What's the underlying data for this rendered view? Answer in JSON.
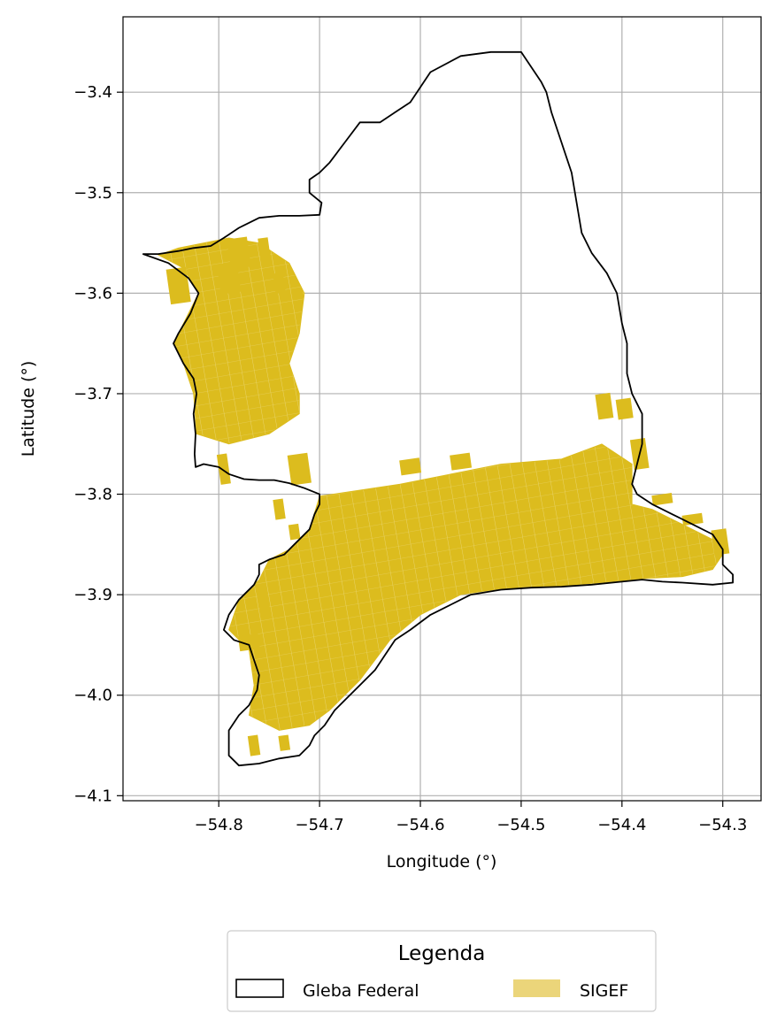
{
  "chart_data": {
    "type": "map",
    "xlabel": "Longitude (°)",
    "ylabel": "Latitude (°)",
    "xlim": [
      -54.895,
      -54.262
    ],
    "ylim": [
      -4.105,
      -3.325
    ],
    "xticks": [
      -54.8,
      -54.7,
      -54.6,
      -54.5,
      -54.4,
      -54.3
    ],
    "xtick_labels": [
      "−54.8",
      "−54.7",
      "−54.6",
      "−54.5",
      "−54.4",
      "−54.3"
    ],
    "yticks": [
      -3.4,
      -3.5,
      -3.6,
      -3.7,
      -3.8,
      -3.9,
      -4.0,
      -4.1
    ],
    "ytick_labels": [
      "−3.4",
      "−3.5",
      "−3.6",
      "−3.7",
      "−3.8",
      "−3.9",
      "−4.0",
      "−4.1"
    ],
    "grid": true,
    "legend": {
      "title": "Legenda",
      "placement": "below-center",
      "entries": [
        {
          "label": "Gleba Federal",
          "style": "outline",
          "color": "#000000"
        },
        {
          "label": "SIGEF",
          "style": "fill",
          "color": "#ebd57a"
        }
      ]
    },
    "colors": {
      "boundary": "#000000",
      "parcels": "#dcbc1e",
      "grid": "#b0b0b0"
    },
    "boundary": [
      [
        -54.5,
        -3.36
      ],
      [
        -54.53,
        -3.36
      ],
      [
        -54.56,
        -3.364
      ],
      [
        -54.59,
        -3.38
      ],
      [
        -54.61,
        -3.41
      ],
      [
        -54.625,
        -3.42
      ],
      [
        -54.64,
        -3.43
      ],
      [
        -54.66,
        -3.43
      ],
      [
        -54.675,
        -3.45
      ],
      [
        -54.69,
        -3.47
      ],
      [
        -54.7,
        -3.48
      ],
      [
        -54.71,
        -3.487
      ],
      [
        -54.71,
        -3.5
      ],
      [
        -54.698,
        -3.51
      ],
      [
        -54.7,
        -3.522
      ],
      [
        -54.72,
        -3.523
      ],
      [
        -54.74,
        -3.523
      ],
      [
        -54.76,
        -3.525
      ],
      [
        -54.78,
        -3.535
      ],
      [
        -54.795,
        -3.545
      ],
      [
        -54.808,
        -3.553
      ],
      [
        -54.825,
        -3.555
      ],
      [
        -54.84,
        -3.558
      ],
      [
        -54.86,
        -3.561
      ],
      [
        -54.875,
        -3.561
      ],
      [
        -54.85,
        -3.57
      ],
      [
        -54.83,
        -3.585
      ],
      [
        -54.82,
        -3.6
      ],
      [
        -54.828,
        -3.62
      ],
      [
        -54.84,
        -3.64
      ],
      [
        -54.845,
        -3.65
      ],
      [
        -54.835,
        -3.67
      ],
      [
        -54.825,
        -3.685
      ],
      [
        -54.822,
        -3.7
      ],
      [
        -54.825,
        -3.72
      ],
      [
        -54.823,
        -3.74
      ],
      [
        -54.824,
        -3.76
      ],
      [
        -54.823,
        -3.773
      ],
      [
        -54.815,
        -3.77
      ],
      [
        -54.8,
        -3.773
      ],
      [
        -54.79,
        -3.78
      ],
      [
        -54.775,
        -3.785
      ],
      [
        -54.76,
        -3.786
      ],
      [
        -54.745,
        -3.786
      ],
      [
        -54.73,
        -3.789
      ],
      [
        -54.715,
        -3.794
      ],
      [
        -54.7,
        -3.8
      ],
      [
        -54.7,
        -3.81
      ],
      [
        -54.705,
        -3.82
      ],
      [
        -54.71,
        -3.835
      ],
      [
        -54.725,
        -3.85
      ],
      [
        -54.735,
        -3.86
      ],
      [
        -54.75,
        -3.865
      ],
      [
        -54.76,
        -3.87
      ],
      [
        -54.76,
        -3.88
      ],
      [
        -54.765,
        -3.89
      ],
      [
        -54.78,
        -3.905
      ],
      [
        -54.79,
        -3.92
      ],
      [
        -54.795,
        -3.935
      ],
      [
        -54.785,
        -3.945
      ],
      [
        -54.77,
        -3.95
      ],
      [
        -54.765,
        -3.965
      ],
      [
        -54.76,
        -3.98
      ],
      [
        -54.762,
        -3.995
      ],
      [
        -54.77,
        -4.01
      ],
      [
        -54.78,
        -4.02
      ],
      [
        -54.79,
        -4.035
      ],
      [
        -54.79,
        -4.05
      ],
      [
        -54.79,
        -4.06
      ],
      [
        -54.78,
        -4.07
      ],
      [
        -54.76,
        -4.068
      ],
      [
        -54.74,
        -4.063
      ],
      [
        -54.72,
        -4.06
      ],
      [
        -54.71,
        -4.05
      ],
      [
        -54.705,
        -4.04
      ],
      [
        -54.695,
        -4.03
      ],
      [
        -54.685,
        -4.015
      ],
      [
        -54.675,
        -4.005
      ],
      [
        -54.66,
        -3.99
      ],
      [
        -54.645,
        -3.975
      ],
      [
        -54.635,
        -3.96
      ],
      [
        -54.625,
        -3.945
      ],
      [
        -54.61,
        -3.935
      ],
      [
        -54.59,
        -3.92
      ],
      [
        -54.57,
        -3.91
      ],
      [
        -54.55,
        -3.9
      ],
      [
        -54.52,
        -3.895
      ],
      [
        -54.49,
        -3.893
      ],
      [
        -54.46,
        -3.892
      ],
      [
        -54.43,
        -3.89
      ],
      [
        -54.4,
        -3.887
      ],
      [
        -54.38,
        -3.885
      ],
      [
        -54.36,
        -3.887
      ],
      [
        -54.34,
        -3.888
      ],
      [
        -54.31,
        -3.89
      ],
      [
        -54.29,
        -3.888
      ],
      [
        -54.29,
        -3.88
      ],
      [
        -54.3,
        -3.87
      ],
      [
        -54.3,
        -3.855
      ],
      [
        -54.31,
        -3.84
      ],
      [
        -54.33,
        -3.83
      ],
      [
        -54.35,
        -3.82
      ],
      [
        -54.37,
        -3.81
      ],
      [
        -54.385,
        -3.8
      ],
      [
        -54.39,
        -3.79
      ],
      [
        -54.385,
        -3.77
      ],
      [
        -54.38,
        -3.75
      ],
      [
        -54.38,
        -3.72
      ],
      [
        -54.39,
        -3.7
      ],
      [
        -54.395,
        -3.68
      ],
      [
        -54.395,
        -3.65
      ],
      [
        -54.4,
        -3.63
      ],
      [
        -54.405,
        -3.6
      ],
      [
        -54.415,
        -3.58
      ],
      [
        -54.43,
        -3.56
      ],
      [
        -54.44,
        -3.54
      ],
      [
        -54.445,
        -3.51
      ],
      [
        -54.45,
        -3.48
      ],
      [
        -54.46,
        -3.45
      ],
      [
        -54.47,
        -3.42
      ],
      [
        -54.475,
        -3.4
      ],
      [
        -54.48,
        -3.39
      ],
      [
        -54.5,
        -3.36
      ]
    ],
    "sigef_regions": [
      [
        [
          -54.86,
          -3.562
        ],
        [
          -54.84,
          -3.555
        ],
        [
          -54.79,
          -3.545
        ],
        [
          -54.76,
          -3.55
        ],
        [
          -54.73,
          -3.57
        ],
        [
          -54.715,
          -3.6
        ],
        [
          -54.72,
          -3.64
        ],
        [
          -54.73,
          -3.67
        ],
        [
          -54.72,
          -3.7
        ],
        [
          -54.72,
          -3.72
        ],
        [
          -54.75,
          -3.74
        ],
        [
          -54.79,
          -3.75
        ],
        [
          -54.822,
          -3.74
        ],
        [
          -54.825,
          -3.7
        ],
        [
          -54.835,
          -3.67
        ],
        [
          -54.845,
          -3.65
        ],
        [
          -54.83,
          -3.62
        ],
        [
          -54.82,
          -3.6
        ],
        [
          -54.835,
          -3.575
        ]
      ],
      [
        [
          -54.7,
          -3.802
        ],
        [
          -54.62,
          -3.79
        ],
        [
          -54.52,
          -3.77
        ],
        [
          -54.46,
          -3.765
        ],
        [
          -54.42,
          -3.75
        ],
        [
          -54.39,
          -3.77
        ],
        [
          -54.39,
          -3.81
        ],
        [
          -54.37,
          -3.815
        ],
        [
          -54.34,
          -3.83
        ],
        [
          -54.31,
          -3.845
        ],
        [
          -54.3,
          -3.86
        ],
        [
          -54.31,
          -3.875
        ],
        [
          -54.34,
          -3.882
        ],
        [
          -54.38,
          -3.884
        ],
        [
          -54.42,
          -3.888
        ],
        [
          -54.47,
          -3.892
        ],
        [
          -54.52,
          -3.894
        ],
        [
          -54.56,
          -3.9
        ],
        [
          -54.6,
          -3.92
        ],
        [
          -54.63,
          -3.945
        ],
        [
          -54.645,
          -3.965
        ],
        [
          -54.66,
          -3.985
        ],
        [
          -54.69,
          -4.015
        ],
        [
          -54.71,
          -4.03
        ],
        [
          -54.74,
          -4.035
        ],
        [
          -54.77,
          -4.02
        ],
        [
          -54.765,
          -3.99
        ],
        [
          -54.77,
          -3.955
        ],
        [
          -54.79,
          -3.935
        ],
        [
          -54.78,
          -3.905
        ],
        [
          -54.76,
          -3.885
        ],
        [
          -54.75,
          -3.865
        ],
        [
          -54.73,
          -3.855
        ],
        [
          -54.71,
          -3.835
        ]
      ]
    ],
    "sigef_strips": [
      [
        -54.85,
        -3.575,
        -54.83,
        -3.61
      ],
      [
        -54.8,
        -3.57,
        -54.78,
        -3.6
      ],
      [
        -54.79,
        -3.545,
        -54.77,
        -3.575
      ],
      [
        -54.76,
        -3.545,
        -54.75,
        -3.565
      ],
      [
        -54.745,
        -3.58,
        -54.735,
        -3.6
      ],
      [
        -54.8,
        -3.76,
        -54.79,
        -3.79
      ],
      [
        -54.73,
        -3.76,
        -54.71,
        -3.79
      ],
      [
        -54.745,
        -3.805,
        -54.735,
        -3.825
      ],
      [
        -54.73,
        -3.83,
        -54.72,
        -3.845
      ],
      [
        -54.425,
        -3.7,
        -54.41,
        -3.725
      ],
      [
        -54.405,
        -3.705,
        -54.39,
        -3.725
      ],
      [
        -54.39,
        -3.745,
        -54.375,
        -3.775
      ],
      [
        -54.37,
        -3.8,
        -54.35,
        -3.81
      ],
      [
        -54.34,
        -3.82,
        -54.32,
        -3.83
      ],
      [
        -54.31,
        -3.835,
        -54.295,
        -3.86
      ],
      [
        -54.76,
        -3.9,
        -54.75,
        -3.92
      ],
      [
        -54.78,
        -3.94,
        -54.76,
        -3.955
      ],
      [
        -54.77,
        -4.04,
        -54.76,
        -4.06
      ],
      [
        -54.74,
        -4.04,
        -54.73,
        -4.055
      ],
      [
        -54.62,
        -3.765,
        -54.6,
        -3.78
      ],
      [
        -54.57,
        -3.76,
        -54.55,
        -3.775
      ]
    ]
  }
}
